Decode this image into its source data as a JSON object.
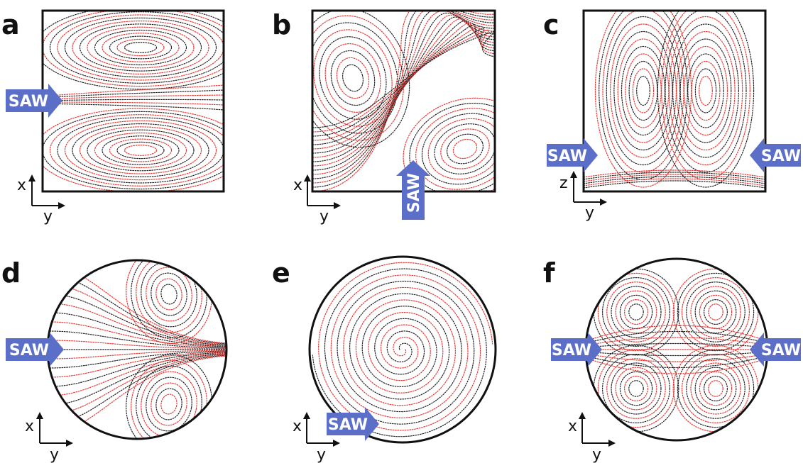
{
  "colors": {
    "streamline_primary": "#e53935",
    "streamline_secondary": "#222222",
    "arrow": "#5b6fc9",
    "frame": "#111111"
  },
  "panels": [
    {
      "id": "a",
      "label": "a",
      "shape": "square",
      "axes": [
        "x",
        "y"
      ],
      "saw": [
        {
          "text": "SAW",
          "direction": "right",
          "side": "left"
        }
      ]
    },
    {
      "id": "b",
      "label": "b",
      "shape": "square",
      "axes": [
        "x",
        "y"
      ],
      "saw": [
        {
          "text": "SAW",
          "direction": "up",
          "side": "bottom"
        }
      ]
    },
    {
      "id": "c",
      "label": "c",
      "shape": "square",
      "axes": [
        "z",
        "y"
      ],
      "saw": [
        {
          "text": "SAW",
          "direction": "right",
          "side": "left"
        },
        {
          "text": "SAW",
          "direction": "left",
          "side": "right"
        }
      ]
    },
    {
      "id": "d",
      "label": "d",
      "shape": "circle",
      "axes": [
        "x",
        "y"
      ],
      "saw": [
        {
          "text": "SAW",
          "direction": "right",
          "side": "left"
        }
      ]
    },
    {
      "id": "e",
      "label": "e",
      "shape": "circle",
      "axes": [
        "x",
        "y"
      ],
      "saw": [
        {
          "text": "SAW",
          "direction": "right",
          "side": "bottom-left"
        }
      ]
    },
    {
      "id": "f",
      "label": "f",
      "shape": "circle",
      "axes": [
        "x",
        "y"
      ],
      "saw": [
        {
          "text": "SAW",
          "direction": "right",
          "side": "left"
        },
        {
          "text": "SAW",
          "direction": "left",
          "side": "right"
        }
      ]
    }
  ]
}
